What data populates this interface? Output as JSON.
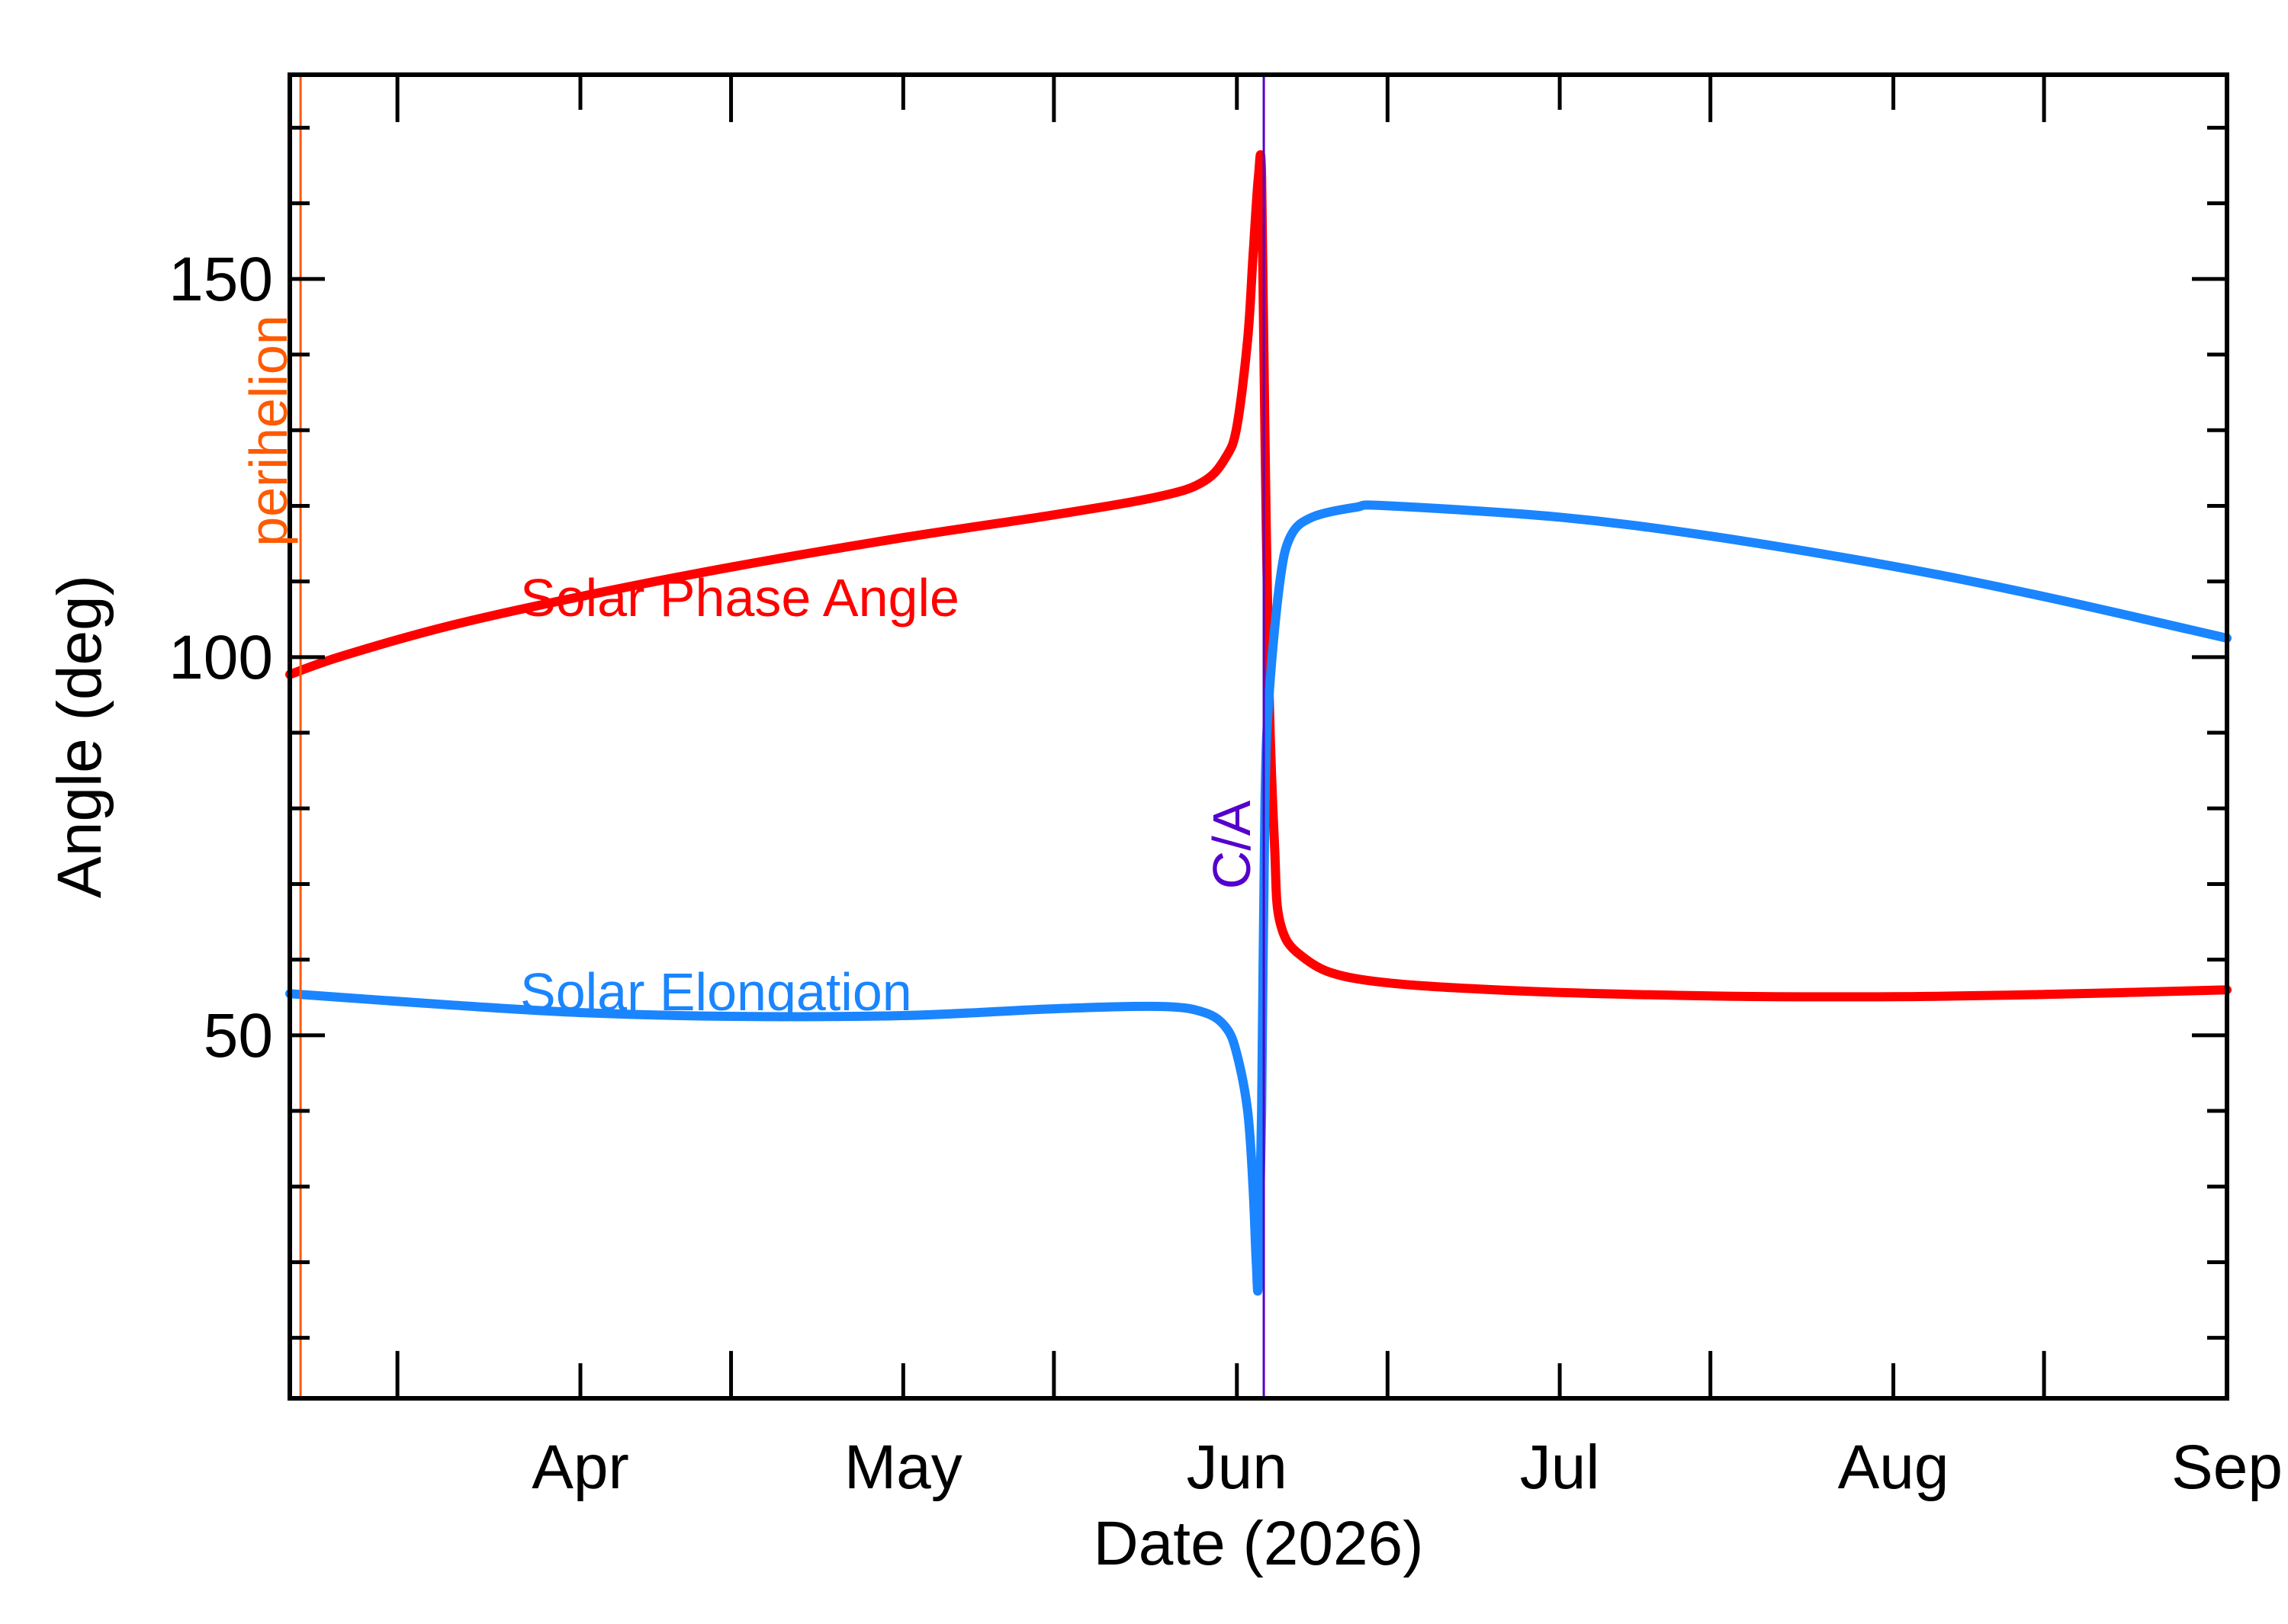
{
  "chart_data": {
    "type": "line",
    "title": "",
    "xlabel": "Date (2026)",
    "ylabel": "Angle (deg)",
    "x_ticks": [
      {
        "date": "2026-04-01",
        "label": "Apr"
      },
      {
        "date": "2026-05-01",
        "label": "May"
      },
      {
        "date": "2026-06-01",
        "label": "Jun"
      },
      {
        "date": "2026-07-01",
        "label": "Jul"
      },
      {
        "date": "2026-08-01",
        "label": "Aug"
      },
      {
        "date": "2026-09-01",
        "label": "Sep"
      }
    ],
    "x_minor_ticks": [
      "2026-03-15",
      "2026-04-15",
      "2026-05-15",
      "2026-06-15",
      "2026-07-15",
      "2026-08-15"
    ],
    "y_ticks": [
      {
        "value": 50,
        "label": "50"
      },
      {
        "value": 100,
        "label": "100"
      },
      {
        "value": 150,
        "label": "150"
      }
    ],
    "y_minor_ticks": [
      10,
      20,
      30,
      40,
      60,
      70,
      80,
      90,
      110,
      120,
      130,
      140,
      160,
      170
    ],
    "xlim": [
      "2026-03-05",
      "2026-09-01"
    ],
    "ylim": [
      2,
      177
    ],
    "grid": false,
    "legend": "none",
    "series": [
      {
        "name": "Solar Phase Angle",
        "color": "#ff0000",
        "points": [
          [
            "2026-03-05",
            97.7
          ],
          [
            "2026-03-10",
            100.2
          ],
          [
            "2026-03-20",
            104.2
          ],
          [
            "2026-04-01",
            108.0
          ],
          [
            "2026-04-15",
            111.9
          ],
          [
            "2026-05-01",
            115.8
          ],
          [
            "2026-05-15",
            118.8
          ],
          [
            "2026-05-25",
            121.3
          ],
          [
            "2026-05-29",
            123.3
          ],
          [
            "2026-05-31",
            126.5
          ],
          [
            "2026-06-01",
            130.5
          ],
          [
            "2026-06-02",
            142.0
          ],
          [
            "2026-06-02.5",
            153.0
          ],
          [
            "2026-06-03",
            163.5
          ],
          [
            "2026-06-03.3",
            163.5
          ],
          [
            "2026-06-03.6",
            130.0
          ],
          [
            "2026-06-04",
            95.0
          ],
          [
            "2026-06-04.5",
            75.0
          ],
          [
            "2026-06-05",
            65.0
          ],
          [
            "2026-06-07",
            60.5
          ],
          [
            "2026-06-12",
            57.5
          ],
          [
            "2026-06-25",
            56.0
          ],
          [
            "2026-07-15",
            55.2
          ],
          [
            "2026-08-01",
            55.1
          ],
          [
            "2026-08-15",
            55.4
          ],
          [
            "2026-09-01",
            56.0
          ]
        ]
      },
      {
        "name": "Solar Elongation",
        "color": "#1a85ff",
        "points": [
          [
            "2026-03-05",
            55.5
          ],
          [
            "2026-03-20",
            54.0
          ],
          [
            "2026-04-01",
            53.0
          ],
          [
            "2026-04-15",
            52.5
          ],
          [
            "2026-05-01",
            52.6
          ],
          [
            "2026-05-15",
            53.5
          ],
          [
            "2026-05-25",
            53.8
          ],
          [
            "2026-05-29",
            53.0
          ],
          [
            "2026-05-31",
            51.0
          ],
          [
            "2026-06-01",
            47.5
          ],
          [
            "2026-06-02",
            40.0
          ],
          [
            "2026-06-02.5",
            30.0
          ],
          [
            "2026-06-02.8",
            20.0
          ],
          [
            "2026-06-03",
            17.5
          ],
          [
            "2026-06-03.3",
            40.0
          ],
          [
            "2026-06-03.6",
            80.0
          ],
          [
            "2026-06-04",
            95.0
          ],
          [
            "2026-06-05",
            110.0
          ],
          [
            "2026-06-06",
            116.0
          ],
          [
            "2026-06-08",
            118.5
          ],
          [
            "2026-06-12",
            119.8
          ],
          [
            "2026-06-15",
            120.0
          ],
          [
            "2026-07-01",
            118.5
          ],
          [
            "2026-07-15",
            116.0
          ],
          [
            "2026-08-01",
            112.0
          ],
          [
            "2026-08-15",
            108.0
          ],
          [
            "2026-09-01",
            102.5
          ]
        ]
      }
    ],
    "annotations": [
      {
        "text": "perihelion",
        "date": "2026-03-06",
        "color": "#ff5a00"
      },
      {
        "text": "C/A",
        "date": "2026-06-03.5",
        "color": "#5500cc"
      },
      {
        "text": "Solar Phase Angle",
        "color": "#ff0000"
      },
      {
        "text": "Solar Elongation",
        "color": "#1a85ff"
      }
    ]
  }
}
